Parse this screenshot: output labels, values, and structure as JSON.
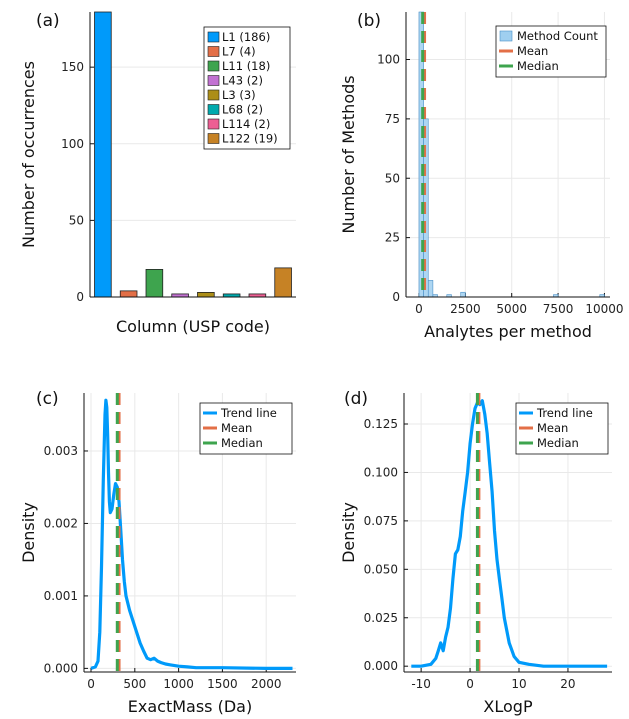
{
  "chart_data": [
    {
      "panel": "(a)",
      "type": "bar",
      "xlabel": "Column (USP code)",
      "ylabel": "Number of occurrences",
      "ylim": [
        0,
        186
      ],
      "yticks": [
        0,
        50,
        100,
        150
      ],
      "categories": [
        "L1",
        "L7",
        "L11",
        "L43",
        "L3",
        "L68",
        "L114",
        "L122"
      ],
      "values": [
        186,
        4,
        18,
        2,
        3,
        2,
        2,
        19
      ],
      "legend": [
        "L1 (186)",
        "L7 (4)",
        "L11 (18)",
        "L43 (2)",
        "L3 (3)",
        "L68 (2)",
        "L114 (2)",
        "L122 (19)"
      ],
      "colors": [
        "#009AFA",
        "#E36F47",
        "#3EA44E",
        "#C271D2",
        "#AC8E18",
        "#00A9AD",
        "#ED5E93",
        "#C68225"
      ],
      "legend_position": "top-right",
      "grid": true
    },
    {
      "panel": "(b)",
      "type": "histogram",
      "xlabel": "Analytes per method",
      "ylabel": "Number of Methods",
      "xlim": [
        -700,
        10300
      ],
      "ylim": [
        0,
        120
      ],
      "xticks": [
        0,
        2500,
        5000,
        7500,
        10000
      ],
      "yticks": [
        0,
        25,
        50,
        75,
        100
      ],
      "bin_width": 250,
      "bins": [
        {
          "x": 0,
          "y": 120
        },
        {
          "x": 250,
          "y": 75
        },
        {
          "x": 500,
          "y": 7
        },
        {
          "x": 750,
          "y": 1
        },
        {
          "x": 1500,
          "y": 1
        },
        {
          "x": 2250,
          "y": 2
        },
        {
          "x": 7250,
          "y": 1
        },
        {
          "x": 9750,
          "y": 1
        }
      ],
      "mean": 300,
      "median": 200,
      "series": [
        {
          "name": "Method Count",
          "color": "#9FCFF0"
        },
        {
          "name": "Mean",
          "color": "#E36F47"
        },
        {
          "name": "Median",
          "color": "#3EA44E"
        }
      ],
      "legend_position": "top-right",
      "grid": true
    },
    {
      "panel": "(c)",
      "type": "line",
      "xlabel": "ExactMass (Da)",
      "ylabel": "Density",
      "xlim": [
        -80,
        2340
      ],
      "ylim": [
        -5e-05,
        0.0038
      ],
      "xticks": [
        0,
        500,
        1000,
        1500,
        2000
      ],
      "yticks": [
        0,
        0.001,
        0.002,
        0.003
      ],
      "ytick_labels": [
        "0.000",
        "0.001",
        "0.002",
        "0.003"
      ],
      "x": [
        0,
        50,
        80,
        100,
        120,
        140,
        160,
        170,
        180,
        190,
        200,
        210,
        220,
        240,
        260,
        280,
        300,
        320,
        340,
        360,
        380,
        400,
        440,
        480,
        520,
        560,
        600,
        640,
        680,
        720,
        760,
        800,
        850,
        900,
        1000,
        1100,
        1200,
        1500,
        2000,
        2300
      ],
      "y": [
        0.0,
        2e-05,
        0.0001,
        0.0005,
        0.0014,
        0.0026,
        0.0035,
        0.0037,
        0.0036,
        0.0032,
        0.0027,
        0.0023,
        0.00215,
        0.0022,
        0.0024,
        0.00255,
        0.0025,
        0.0023,
        0.0019,
        0.0015,
        0.0012,
        0.001,
        0.0008,
        0.00065,
        0.0005,
        0.00035,
        0.00024,
        0.00014,
        0.00012,
        0.00014,
        0.0001,
        8e-05,
        6e-05,
        5e-05,
        3e-05,
        2e-05,
        1e-05,
        1e-05,
        0.0,
        0.0
      ],
      "mean": 320,
      "median": 300,
      "series": [
        {
          "name": "Trend line",
          "color": "#009AFA"
        },
        {
          "name": "Mean",
          "color": "#E36F47"
        },
        {
          "name": "Median",
          "color": "#3EA44E"
        }
      ],
      "legend_position": "top-right",
      "grid": true
    },
    {
      "panel": "(d)",
      "type": "line",
      "xlabel": "XLogP",
      "ylabel": "Density",
      "xlim": [
        -13.5,
        29
      ],
      "ylim": [
        -0.003,
        0.141
      ],
      "xticks": [
        -10,
        0,
        10,
        20
      ],
      "yticks": [
        0,
        0.025,
        0.05,
        0.075,
        0.1,
        0.125
      ],
      "ytick_labels": [
        "0.000",
        "0.025",
        "0.050",
        "0.075",
        "0.100",
        "0.125"
      ],
      "x": [
        -12,
        -10,
        -8,
        -7,
        -6.5,
        -6,
        -5.5,
        -5,
        -4.5,
        -4,
        -3.5,
        -3,
        -2.5,
        -2,
        -1.5,
        -1,
        -0.5,
        0,
        0.5,
        1,
        1.5,
        2,
        2.5,
        3,
        3.5,
        4,
        4.5,
        5,
        5.5,
        6,
        6.5,
        7,
        8,
        9,
        10,
        12,
        15,
        20,
        28
      ],
      "y": [
        0.0,
        0.0,
        0.001,
        0.004,
        0.008,
        0.012,
        0.008,
        0.015,
        0.02,
        0.03,
        0.045,
        0.058,
        0.06,
        0.067,
        0.08,
        0.09,
        0.1,
        0.115,
        0.125,
        0.133,
        0.136,
        0.135,
        0.137,
        0.13,
        0.12,
        0.105,
        0.09,
        0.07,
        0.055,
        0.045,
        0.035,
        0.025,
        0.012,
        0.005,
        0.002,
        0.001,
        0.0,
        0.0,
        0.0
      ],
      "mean": 1.8,
      "median": 1.5,
      "series": [
        {
          "name": "Trend line",
          "color": "#009AFA"
        },
        {
          "name": "Mean",
          "color": "#E36F47"
        },
        {
          "name": "Median",
          "color": "#3EA44E"
        }
      ],
      "legend_position": "top-right",
      "grid": true
    }
  ]
}
